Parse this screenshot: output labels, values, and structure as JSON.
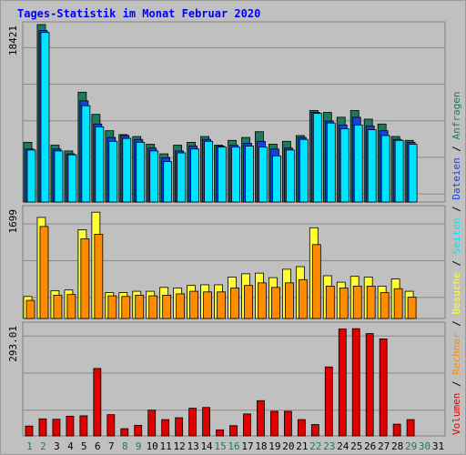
{
  "title": "Tages-Statistik im Monat Februar 2020",
  "colors": {
    "anfragen": "#1d7a5f",
    "dateien": "#1b3fe0",
    "seiten": "#00e5ff",
    "besuche": "#ffff33",
    "rechner": "#ff8c00",
    "volumen": "#e00000",
    "weekend_label": "#1d7a5f",
    "weekday_label": "#000000"
  },
  "chart_data": [
    {
      "type": "bar",
      "panel": "top",
      "ylabel": "18421",
      "ylim": [
        0,
        18421
      ],
      "categories": [
        "1",
        "2",
        "3",
        "4",
        "5",
        "6",
        "7",
        "8",
        "9",
        "10",
        "11",
        "12",
        "13",
        "14",
        "15",
        "16",
        "17",
        "18",
        "19",
        "20",
        "21",
        "22",
        "23",
        "24",
        "25",
        "26",
        "27",
        "28",
        "29",
        "30",
        "31"
      ],
      "weekend_days": [
        "1",
        "2",
        "8",
        "9",
        "15",
        "16",
        "22",
        "23",
        "29",
        "30"
      ],
      "series": [
        {
          "name": "Anfragen",
          "values": [
            6200,
            18421,
            5900,
            5300,
            11400,
            9100,
            7400,
            7000,
            6800,
            6000,
            5000,
            5900,
            6200,
            6800,
            5900,
            6400,
            6700,
            7300,
            6000,
            6300,
            6900,
            9500,
            9300,
            8800,
            9500,
            8600,
            8100,
            6800,
            6400,
            0,
            0
          ]
        },
        {
          "name": "Dateien",
          "values": [
            5500,
            17800,
            5500,
            5000,
            10500,
            8100,
            6700,
            6900,
            6500,
            5600,
            4600,
            5300,
            5800,
            6500,
            5800,
            5900,
            6100,
            6300,
            5500,
            5600,
            6700,
            9300,
            8400,
            8000,
            8800,
            7900,
            7400,
            6500,
            6200,
            0,
            0
          ]
        },
        {
          "name": "Seiten",
          "values": [
            5400,
            17600,
            5300,
            4900,
            10000,
            7800,
            6300,
            6600,
            6200,
            5300,
            4200,
            5100,
            5500,
            6300,
            5700,
            5700,
            5800,
            5700,
            4800,
            5400,
            6500,
            9200,
            8200,
            7600,
            8000,
            7500,
            6900,
            6400,
            6000,
            0,
            0
          ]
        }
      ]
    },
    {
      "type": "bar",
      "panel": "middle",
      "ylabel": "1699",
      "ylim": [
        0,
        1699
      ],
      "categories": [
        "1",
        "2",
        "3",
        "4",
        "5",
        "6",
        "7",
        "8",
        "9",
        "10",
        "11",
        "12",
        "13",
        "14",
        "15",
        "16",
        "17",
        "18",
        "19",
        "20",
        "21",
        "22",
        "23",
        "24",
        "25",
        "26",
        "27",
        "28",
        "29",
        "30",
        "31"
      ],
      "series": [
        {
          "name": "Besuche",
          "values": [
            340,
            1560,
            430,
            440,
            1370,
            1640,
            400,
            400,
            420,
            420,
            480,
            470,
            510,
            520,
            520,
            640,
            690,
            700,
            630,
            760,
            800,
            1400,
            660,
            560,
            650,
            640,
            500,
            610,
            420,
            0,
            0
          ]
        },
        {
          "name": "Rechner",
          "values": [
            280,
            1420,
            360,
            370,
            1230,
            1300,
            350,
            340,
            360,
            350,
            360,
            380,
            420,
            410,
            410,
            470,
            510,
            550,
            480,
            550,
            600,
            1140,
            500,
            470,
            500,
            500,
            400,
            460,
            330,
            0,
            0
          ]
        }
      ]
    },
    {
      "type": "bar",
      "panel": "bottom",
      "ylabel": "293.01",
      "ylim": [
        0,
        293.01
      ],
      "categories": [
        "1",
        "2",
        "3",
        "4",
        "5",
        "6",
        "7",
        "8",
        "9",
        "10",
        "11",
        "12",
        "13",
        "14",
        "15",
        "16",
        "17",
        "18",
        "19",
        "20",
        "21",
        "22",
        "23",
        "24",
        "25",
        "26",
        "27",
        "28",
        "29",
        "30",
        "31"
      ],
      "series": [
        {
          "name": "Volumen",
          "values": [
            26,
            45,
            44,
            52,
            53,
            178,
            56,
            19,
            28,
            68,
            43,
            48,
            73,
            75,
            16,
            27,
            58,
            93,
            65,
            65,
            43,
            30,
            182,
            282,
            283,
            270,
            256,
            31,
            43,
            0,
            0
          ]
        }
      ]
    }
  ],
  "side_legend": [
    "Volumen",
    "Rechner",
    "Besuche",
    "Seiten",
    "Dateien",
    "Anfragen"
  ]
}
